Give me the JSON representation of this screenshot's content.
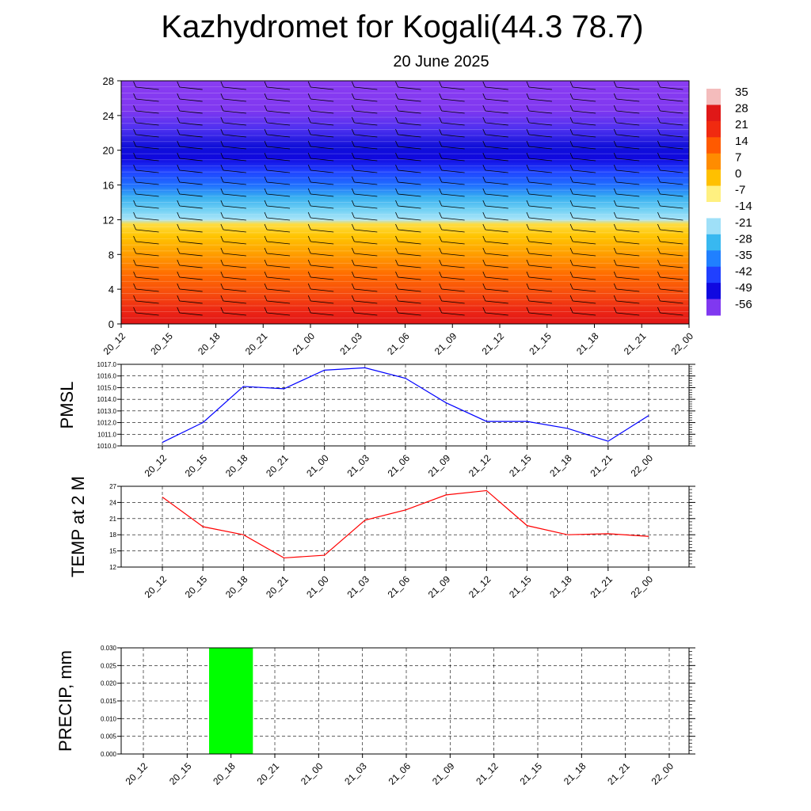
{
  "title": "Kazhydromet for Kogali(44.3 78.7)",
  "subtitle": "20 June 2025",
  "time_labels": [
    "20_12",
    "20_15",
    "20_18",
    "20_21",
    "21_00",
    "21_03",
    "21_06",
    "21_09",
    "21_12",
    "21_15",
    "21_18",
    "21_21",
    "22_00"
  ],
  "chart_data": [
    {
      "type": "heatmap",
      "name": "temperature-profile",
      "x": [
        "20_12",
        "20_15",
        "20_18",
        "20_21",
        "21_00",
        "21_03",
        "21_06",
        "21_09",
        "21_12",
        "21_15",
        "21_18",
        "21_21",
        "22_00"
      ],
      "ylim": [
        0,
        28
      ],
      "yticks": [
        0,
        4,
        8,
        12,
        16,
        20,
        24,
        28
      ],
      "colorbar": {
        "labels": [
          "35",
          "28",
          "21",
          "14",
          "7",
          "0",
          "-7",
          "-14",
          "-21",
          "-28",
          "-35",
          "-42",
          "-49",
          "-56"
        ],
        "colors": [
          "#f4bcbc",
          "#e01818",
          "#f02a10",
          "#ff5a00",
          "#ff8c00",
          "#ffc000",
          "#fff080",
          "#ffffff",
          "#9fe0f8",
          "#38b8f0",
          "#2080ff",
          "#2040ff",
          "#1008e0",
          "#8038f0"
        ]
      },
      "wind_barbs": "shown"
    },
    {
      "type": "line",
      "ylabel": "PMSL",
      "x": [
        "20_12",
        "20_15",
        "20_18",
        "20_21",
        "21_00",
        "21_03",
        "21_06",
        "21_09",
        "21_12",
        "21_15",
        "21_18",
        "21_21",
        "22_00"
      ],
      "values": [
        1010.3,
        1012.0,
        1015.1,
        1014.9,
        1016.5,
        1016.7,
        1015.8,
        1013.7,
        1012.1,
        1012.1,
        1011.5,
        1010.4,
        1012.6
      ],
      "ylim": [
        1010.0,
        1017.0
      ],
      "yticks": [
        "1010.0",
        "1011.0",
        "1012.0",
        "1013.0",
        "1014.0",
        "1015.0",
        "1016.0",
        "1017.0"
      ],
      "color": "#0000ff",
      "grid": true
    },
    {
      "type": "line",
      "ylabel": "TEMP at 2 M",
      "x": [
        "20_12",
        "20_15",
        "20_18",
        "20_21",
        "21_00",
        "21_03",
        "21_06",
        "21_09",
        "21_12",
        "21_15",
        "21_18",
        "21_21",
        "22_00"
      ],
      "values": [
        25.0,
        19.5,
        18.0,
        13.7,
        14.2,
        20.7,
        22.6,
        25.4,
        26.2,
        19.7,
        18.0,
        18.2,
        17.7
      ],
      "ylim": [
        12,
        27
      ],
      "yticks": [
        "12",
        "15",
        "18",
        "21",
        "24",
        "27"
      ],
      "color": "#ff0000",
      "grid": true
    },
    {
      "type": "bar",
      "ylabel": "PRECIP, mm",
      "x": [
        "20_12",
        "20_15",
        "20_18",
        "20_21",
        "21_00",
        "21_03",
        "21_06",
        "21_09",
        "21_12",
        "21_15",
        "21_18",
        "21_21",
        "22_00"
      ],
      "values": [
        0,
        0,
        0.03,
        0,
        0,
        0,
        0,
        0,
        0,
        0,
        0,
        0,
        0
      ],
      "ylim": [
        0,
        0.03
      ],
      "yticks": [
        "0.000",
        "0.005",
        "0.010",
        "0.015",
        "0.020",
        "0.025",
        "0.030"
      ],
      "color": "#00ff00",
      "grid": true
    }
  ]
}
